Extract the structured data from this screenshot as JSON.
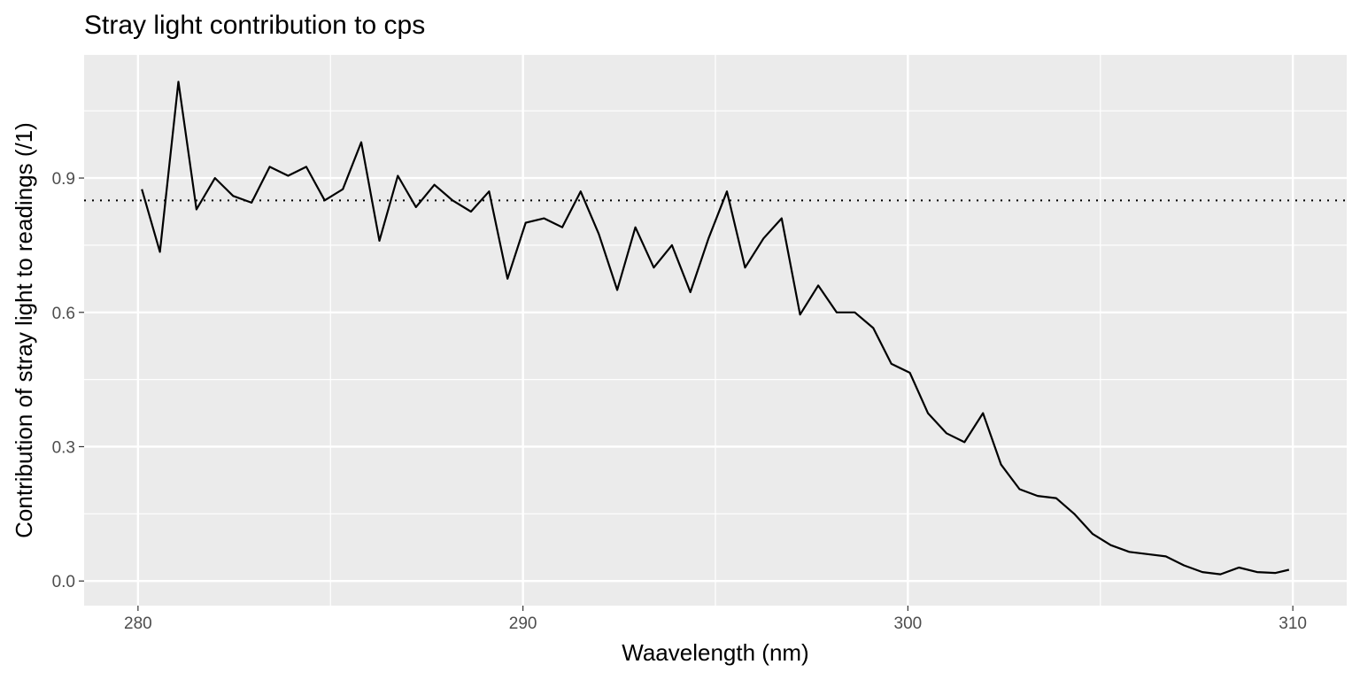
{
  "chart_data": {
    "type": "line",
    "title": "Stray light contribution to cps",
    "xlabel": "Waavelength (nm)",
    "ylabel": "Contribution of stray light to readings (/1)",
    "xlim": [
      278.6,
      311.4
    ],
    "ylim": [
      -0.055,
      1.175
    ],
    "x_major_ticks": [
      280,
      290,
      300,
      310
    ],
    "x_minor_ticks": [
      285,
      295,
      305
    ],
    "x_tick_labels": [
      "280",
      "290",
      "300",
      "310"
    ],
    "y_major_ticks": [
      0.0,
      0.3,
      0.6,
      0.9
    ],
    "y_minor_ticks": [
      0.15,
      0.45,
      0.75,
      1.05
    ],
    "y_tick_labels": [
      "0.0",
      "0.3",
      "0.6",
      "0.9"
    ],
    "grid": true,
    "reference_line": {
      "type": "horizontal",
      "y": 0.85,
      "style": "dotted"
    },
    "series": [
      {
        "color": "#000000",
        "x": [
          280.1,
          280.57,
          281.05,
          281.52,
          282.0,
          282.47,
          282.95,
          283.42,
          283.9,
          284.37,
          284.85,
          285.32,
          285.8,
          286.27,
          286.75,
          287.22,
          287.7,
          288.17,
          288.65,
          289.12,
          289.6,
          290.07,
          290.55,
          291.02,
          291.5,
          291.97,
          292.45,
          292.92,
          293.4,
          293.87,
          294.35,
          294.82,
          295.3,
          295.77,
          296.25,
          296.72,
          297.2,
          297.67,
          298.15,
          298.62,
          299.1,
          299.57,
          300.05,
          300.52,
          301.0,
          301.47,
          301.95,
          302.42,
          302.9,
          303.37,
          303.85,
          304.32,
          304.8,
          305.27,
          305.75,
          306.22,
          306.7,
          307.17,
          307.65,
          308.12,
          308.6,
          309.07,
          309.55,
          309.9
        ],
        "y": [
          0.875,
          0.735,
          1.115,
          0.83,
          0.9,
          0.86,
          0.845,
          0.925,
          0.905,
          0.925,
          0.85,
          0.875,
          0.98,
          0.76,
          0.905,
          0.835,
          0.885,
          0.85,
          0.825,
          0.87,
          0.675,
          0.8,
          0.81,
          0.79,
          0.87,
          0.775,
          0.65,
          0.79,
          0.7,
          0.75,
          0.645,
          0.765,
          0.87,
          0.7,
          0.765,
          0.81,
          0.595,
          0.66,
          0.6,
          0.6,
          0.565,
          0.485,
          0.465,
          0.375,
          0.33,
          0.31,
          0.375,
          0.26,
          0.205,
          0.19,
          0.185,
          0.15,
          0.105,
          0.08,
          0.065,
          0.06,
          0.055,
          0.035,
          0.02,
          0.015,
          0.03,
          0.02,
          0.018,
          0.025
        ]
      }
    ]
  }
}
